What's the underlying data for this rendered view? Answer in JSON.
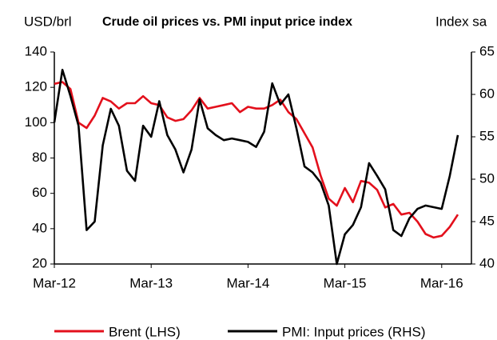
{
  "chart_data": {
    "type": "line",
    "title": "Crude oil prices vs. PMI input price index",
    "y_label": "USD/brl",
    "y2_label": "Index sa",
    "categories": [
      "Mar-12",
      null,
      null,
      null,
      null,
      null,
      null,
      null,
      null,
      null,
      null,
      null,
      "Mar-13",
      null,
      null,
      null,
      null,
      null,
      null,
      null,
      null,
      null,
      null,
      null,
      "Mar-14",
      null,
      null,
      null,
      null,
      null,
      null,
      null,
      null,
      null,
      null,
      null,
      "Mar-15",
      null,
      null,
      null,
      null,
      null,
      null,
      null,
      null,
      null,
      null,
      null,
      "Mar-16",
      null,
      null
    ],
    "series": [
      {
        "name": "Brent (LHS)",
        "color": "#e3101c",
        "values": [
          122,
          123,
          119,
          100,
          97,
          104,
          114,
          112,
          108,
          111,
          111,
          115,
          111,
          110,
          103,
          101,
          102,
          107,
          114,
          108,
          109,
          110,
          111,
          106,
          109,
          108,
          108,
          110,
          113,
          106,
          102,
          94,
          86,
          70,
          57,
          53,
          63,
          55,
          67,
          66,
          62,
          52,
          54,
          48,
          49,
          44,
          37,
          35,
          36,
          41,
          48
        ]
      },
      {
        "name": "PMI: Input prices (RHS)",
        "color": "#000000",
        "axis": "y2",
        "values": [
          56.7,
          62.9,
          59.8,
          56.3,
          44.0,
          45.0,
          54.0,
          58.3,
          56.3,
          51.0,
          49.8,
          56.3,
          55.0,
          59.2,
          55.2,
          53.5,
          50.8,
          53.5,
          59.4,
          56.0,
          55.2,
          54.6,
          54.8,
          54.6,
          54.4,
          53.8,
          55.6,
          61.3,
          58.8,
          60.0,
          56.0,
          51.5,
          50.8,
          49.6,
          46.9,
          40.0,
          43.5,
          44.6,
          46.7,
          51.9,
          50.4,
          48.8,
          44.0,
          43.3,
          45.4,
          46.5,
          46.9,
          46.7,
          46.5,
          50.4,
          55.2
        ]
      }
    ],
    "ylim": [
      20,
      140
    ],
    "yticks": [
      20,
      40,
      60,
      80,
      100,
      120,
      140
    ],
    "y2lim": [
      40,
      65
    ],
    "y2ticks": [
      40,
      45,
      50,
      55,
      60,
      65
    ],
    "grid": false,
    "legend": "bottom"
  }
}
